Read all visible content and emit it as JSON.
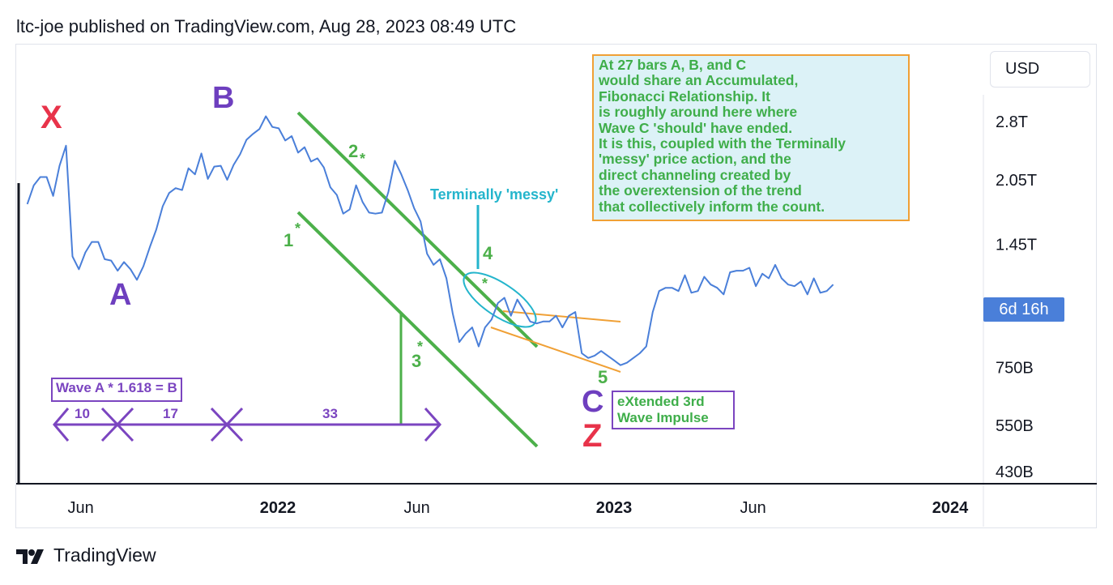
{
  "header": {
    "publish_line": "ltc-joe published on TradingView.com, Aug 28, 2023 08:49 UTC"
  },
  "brand": {
    "name": "TradingView"
  },
  "currency_button": {
    "label": "USD"
  },
  "price_tag": {
    "label": "6d 16h",
    "color": "#4a7fd9"
  },
  "colors": {
    "line": "#4a7fd9",
    "wave_label": "#6e3fbf",
    "red": "#e8334a",
    "green": "#4cb04a",
    "cyan": "#24b5cc",
    "orange": "#f0a035"
  },
  "info_box": {
    "lines": [
      "At 27 bars A, B, and C",
      "would share an Accumulated,",
      "Fibonacci Relationship. It",
      "is roughly around here where",
      "Wave C 'should' have ended.",
      "It is this, coupled with the Terminally",
      "'messy' price action, and the",
      "direct channeling created by",
      "the overextension of the trend",
      "that collectively inform the count."
    ]
  },
  "annotations": {
    "X": "X",
    "A": "A",
    "B": "B",
    "C": "C",
    "Z": "Z",
    "w1": "1",
    "w2": "2",
    "w3": "3",
    "w4": "4",
    "w5": "5",
    "star": "*",
    "terminally": "Terminally 'messy'",
    "formula": "Wave A * 1.618 = B",
    "bars_10": "10",
    "bars_17": "17",
    "bars_33": "33",
    "extended_line1": "eXtended 3rd",
    "extended_line2": "Wave Impulse"
  },
  "chart_data": {
    "type": "line",
    "title": "",
    "scale": "log",
    "y_ticks": [
      "2.8T",
      "2.05T",
      "1.45T",
      "750B",
      "550B",
      "430B"
    ],
    "x_ticks": [
      "Jun",
      "2022",
      "Jun",
      "2023",
      "Jun",
      "2024"
    ],
    "x_ticks_bold": [
      "2022",
      "2023",
      "2024"
    ],
    "series": [
      {
        "x": [
          "2021-04-04",
          "2021-04-11",
          "2021-04-18",
          "2021-04-25",
          "2021-05-02",
          "2021-05-09",
          "2021-05-16",
          "2021-05-23",
          "2021-05-30",
          "2021-06-06",
          "2021-06-13",
          "2021-06-20",
          "2021-06-27",
          "2021-07-04",
          "2021-07-11",
          "2021-07-18",
          "2021-07-25",
          "2021-08-01",
          "2021-08-08",
          "2021-08-15",
          "2021-08-22",
          "2021-08-29",
          "2021-09-05",
          "2021-09-12",
          "2021-09-19",
          "2021-09-26",
          "2021-10-03",
          "2021-10-10",
          "2021-10-17",
          "2021-10-24",
          "2021-10-31",
          "2021-11-07",
          "2021-11-14",
          "2021-11-21",
          "2021-11-28",
          "2021-12-05",
          "2021-12-12",
          "2021-12-19",
          "2021-12-26",
          "2022-01-02",
          "2022-01-09",
          "2022-01-16",
          "2022-01-23",
          "2022-01-30",
          "2022-02-06",
          "2022-02-13",
          "2022-02-20",
          "2022-02-27",
          "2022-03-06",
          "2022-03-13",
          "2022-03-20",
          "2022-03-27",
          "2022-04-03",
          "2022-04-10",
          "2022-04-17",
          "2022-04-24",
          "2022-05-01",
          "2022-05-08",
          "2022-05-15",
          "2022-05-22",
          "2022-05-29",
          "2022-06-05",
          "2022-06-12",
          "2022-06-19",
          "2022-06-26",
          "2022-07-03",
          "2022-07-10",
          "2022-07-17",
          "2022-07-24",
          "2022-07-31",
          "2022-08-07",
          "2022-08-14",
          "2022-08-21",
          "2022-08-28",
          "2022-09-04",
          "2022-09-11",
          "2022-09-18",
          "2022-09-25",
          "2022-10-02",
          "2022-10-09",
          "2022-10-16",
          "2022-10-23",
          "2022-10-30",
          "2022-11-06",
          "2022-11-13",
          "2022-11-20",
          "2022-11-27",
          "2022-12-04",
          "2022-12-11",
          "2022-12-18",
          "2022-12-25",
          "2023-01-01",
          "2023-01-08",
          "2023-01-15",
          "2023-01-22",
          "2023-01-29",
          "2023-02-05",
          "2023-02-12",
          "2023-02-19",
          "2023-02-26",
          "2023-03-05",
          "2023-03-12",
          "2023-03-19",
          "2023-03-26",
          "2023-04-02",
          "2023-04-09",
          "2023-04-16",
          "2023-04-23",
          "2023-04-30",
          "2023-05-07",
          "2023-05-14",
          "2023-05-21",
          "2023-05-28",
          "2023-06-04",
          "2023-06-11",
          "2023-06-18",
          "2023-06-25",
          "2023-07-02",
          "2023-07-09",
          "2023-07-16",
          "2023-07-23",
          "2023-07-30",
          "2023-08-06",
          "2023-08-13",
          "2023-08-20",
          "2023-08-27"
        ],
        "values": [
          1800,
          1990,
          2080,
          2080,
          1880,
          2210,
          2460,
          1360,
          1270,
          1390,
          1470,
          1470,
          1340,
          1330,
          1260,
          1320,
          1270,
          1200,
          1290,
          1430,
          1570,
          1780,
          1910,
          1960,
          1940,
          2180,
          2110,
          2360,
          2060,
          2200,
          2210,
          2050,
          2220,
          2350,
          2540,
          2620,
          2690,
          2880,
          2720,
          2700,
          2530,
          2590,
          2370,
          2440,
          2260,
          2300,
          2190,
          1970,
          1890,
          1710,
          1750,
          1990,
          1820,
          1720,
          1710,
          1720,
          1920,
          2270,
          2110,
          1940,
          1760,
          1640,
          1380,
          1300,
          1340,
          1210,
          1000,
          860,
          900,
          930,
          840,
          930,
          970,
          1060,
          1090,
          990,
          1080,
          1020,
          960,
          950,
          960,
          960,
          990,
          930,
          990,
          1010,
          810,
          790,
          800,
          820,
          800,
          780,
          760,
          770,
          790,
          810,
          840,
          1010,
          1130,
          1150,
          1150,
          1130,
          1230,
          1120,
          1130,
          1220,
          1170,
          1150,
          1110,
          1250,
          1260,
          1260,
          1280,
          1160,
          1240,
          1210,
          1300,
          1210,
          1170,
          1160,
          1190,
          1110,
          1210,
          1120,
          1130,
          1170
        ]
      }
    ]
  }
}
